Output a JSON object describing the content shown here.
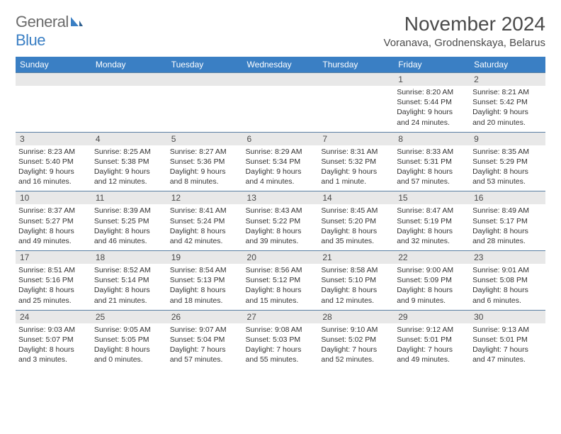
{
  "logo": {
    "general": "General",
    "blue": "Blue"
  },
  "title": "November 2024",
  "location": "Voranava, Grodnenskaya, Belarus",
  "colors": {
    "header_bg": "#3a7fc4",
    "daynum_bg": "#e8e8e8",
    "row_border": "#5a7fa3",
    "text": "#333333",
    "title_text": "#4a4a4a"
  },
  "day_names": [
    "Sunday",
    "Monday",
    "Tuesday",
    "Wednesday",
    "Thursday",
    "Friday",
    "Saturday"
  ],
  "weeks": [
    [
      null,
      null,
      null,
      null,
      null,
      {
        "n": "1",
        "sr": "Sunrise: 8:20 AM",
        "ss": "Sunset: 5:44 PM",
        "d1": "Daylight: 9 hours",
        "d2": "and 24 minutes."
      },
      {
        "n": "2",
        "sr": "Sunrise: 8:21 AM",
        "ss": "Sunset: 5:42 PM",
        "d1": "Daylight: 9 hours",
        "d2": "and 20 minutes."
      }
    ],
    [
      {
        "n": "3",
        "sr": "Sunrise: 8:23 AM",
        "ss": "Sunset: 5:40 PM",
        "d1": "Daylight: 9 hours",
        "d2": "and 16 minutes."
      },
      {
        "n": "4",
        "sr": "Sunrise: 8:25 AM",
        "ss": "Sunset: 5:38 PM",
        "d1": "Daylight: 9 hours",
        "d2": "and 12 minutes."
      },
      {
        "n": "5",
        "sr": "Sunrise: 8:27 AM",
        "ss": "Sunset: 5:36 PM",
        "d1": "Daylight: 9 hours",
        "d2": "and 8 minutes."
      },
      {
        "n": "6",
        "sr": "Sunrise: 8:29 AM",
        "ss": "Sunset: 5:34 PM",
        "d1": "Daylight: 9 hours",
        "d2": "and 4 minutes."
      },
      {
        "n": "7",
        "sr": "Sunrise: 8:31 AM",
        "ss": "Sunset: 5:32 PM",
        "d1": "Daylight: 9 hours",
        "d2": "and 1 minute."
      },
      {
        "n": "8",
        "sr": "Sunrise: 8:33 AM",
        "ss": "Sunset: 5:31 PM",
        "d1": "Daylight: 8 hours",
        "d2": "and 57 minutes."
      },
      {
        "n": "9",
        "sr": "Sunrise: 8:35 AM",
        "ss": "Sunset: 5:29 PM",
        "d1": "Daylight: 8 hours",
        "d2": "and 53 minutes."
      }
    ],
    [
      {
        "n": "10",
        "sr": "Sunrise: 8:37 AM",
        "ss": "Sunset: 5:27 PM",
        "d1": "Daylight: 8 hours",
        "d2": "and 49 minutes."
      },
      {
        "n": "11",
        "sr": "Sunrise: 8:39 AM",
        "ss": "Sunset: 5:25 PM",
        "d1": "Daylight: 8 hours",
        "d2": "and 46 minutes."
      },
      {
        "n": "12",
        "sr": "Sunrise: 8:41 AM",
        "ss": "Sunset: 5:24 PM",
        "d1": "Daylight: 8 hours",
        "d2": "and 42 minutes."
      },
      {
        "n": "13",
        "sr": "Sunrise: 8:43 AM",
        "ss": "Sunset: 5:22 PM",
        "d1": "Daylight: 8 hours",
        "d2": "and 39 minutes."
      },
      {
        "n": "14",
        "sr": "Sunrise: 8:45 AM",
        "ss": "Sunset: 5:20 PM",
        "d1": "Daylight: 8 hours",
        "d2": "and 35 minutes."
      },
      {
        "n": "15",
        "sr": "Sunrise: 8:47 AM",
        "ss": "Sunset: 5:19 PM",
        "d1": "Daylight: 8 hours",
        "d2": "and 32 minutes."
      },
      {
        "n": "16",
        "sr": "Sunrise: 8:49 AM",
        "ss": "Sunset: 5:17 PM",
        "d1": "Daylight: 8 hours",
        "d2": "and 28 minutes."
      }
    ],
    [
      {
        "n": "17",
        "sr": "Sunrise: 8:51 AM",
        "ss": "Sunset: 5:16 PM",
        "d1": "Daylight: 8 hours",
        "d2": "and 25 minutes."
      },
      {
        "n": "18",
        "sr": "Sunrise: 8:52 AM",
        "ss": "Sunset: 5:14 PM",
        "d1": "Daylight: 8 hours",
        "d2": "and 21 minutes."
      },
      {
        "n": "19",
        "sr": "Sunrise: 8:54 AM",
        "ss": "Sunset: 5:13 PM",
        "d1": "Daylight: 8 hours",
        "d2": "and 18 minutes."
      },
      {
        "n": "20",
        "sr": "Sunrise: 8:56 AM",
        "ss": "Sunset: 5:12 PM",
        "d1": "Daylight: 8 hours",
        "d2": "and 15 minutes."
      },
      {
        "n": "21",
        "sr": "Sunrise: 8:58 AM",
        "ss": "Sunset: 5:10 PM",
        "d1": "Daylight: 8 hours",
        "d2": "and 12 minutes."
      },
      {
        "n": "22",
        "sr": "Sunrise: 9:00 AM",
        "ss": "Sunset: 5:09 PM",
        "d1": "Daylight: 8 hours",
        "d2": "and 9 minutes."
      },
      {
        "n": "23",
        "sr": "Sunrise: 9:01 AM",
        "ss": "Sunset: 5:08 PM",
        "d1": "Daylight: 8 hours",
        "d2": "and 6 minutes."
      }
    ],
    [
      {
        "n": "24",
        "sr": "Sunrise: 9:03 AM",
        "ss": "Sunset: 5:07 PM",
        "d1": "Daylight: 8 hours",
        "d2": "and 3 minutes."
      },
      {
        "n": "25",
        "sr": "Sunrise: 9:05 AM",
        "ss": "Sunset: 5:05 PM",
        "d1": "Daylight: 8 hours",
        "d2": "and 0 minutes."
      },
      {
        "n": "26",
        "sr": "Sunrise: 9:07 AM",
        "ss": "Sunset: 5:04 PM",
        "d1": "Daylight: 7 hours",
        "d2": "and 57 minutes."
      },
      {
        "n": "27",
        "sr": "Sunrise: 9:08 AM",
        "ss": "Sunset: 5:03 PM",
        "d1": "Daylight: 7 hours",
        "d2": "and 55 minutes."
      },
      {
        "n": "28",
        "sr": "Sunrise: 9:10 AM",
        "ss": "Sunset: 5:02 PM",
        "d1": "Daylight: 7 hours",
        "d2": "and 52 minutes."
      },
      {
        "n": "29",
        "sr": "Sunrise: 9:12 AM",
        "ss": "Sunset: 5:01 PM",
        "d1": "Daylight: 7 hours",
        "d2": "and 49 minutes."
      },
      {
        "n": "30",
        "sr": "Sunrise: 9:13 AM",
        "ss": "Sunset: 5:01 PM",
        "d1": "Daylight: 7 hours",
        "d2": "and 47 minutes."
      }
    ]
  ]
}
